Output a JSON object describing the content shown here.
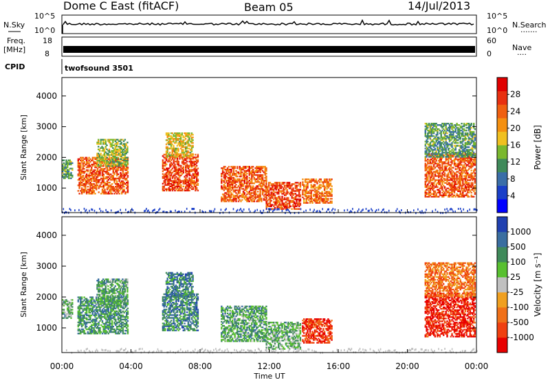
{
  "header": {
    "station": "Dome C East (fitACF)",
    "beam": "Beam 05",
    "date": "14/Jul/2013"
  },
  "panels": {
    "nsky": {
      "label": "N.Sky",
      "ticks": [
        "10^5",
        "10^0"
      ]
    },
    "nsearch": {
      "label": "N.Search",
      "dots": "·······",
      "ticks": [
        "10^5",
        "10^0"
      ]
    },
    "freq": {
      "label_line1": "Freq.",
      "label_line2": "[MHz]",
      "ticks": [
        "18",
        "8"
      ]
    },
    "nave": {
      "label": "Nave",
      "dots": "····",
      "ticks": [
        "60",
        "0"
      ]
    },
    "cpid": {
      "label": "CPID",
      "value": "twofsound 3501"
    }
  },
  "chart_data": [
    {
      "type": "heatmap",
      "name": "power",
      "ylabel": "Slant Range [km]",
      "y_ticks": [
        1000,
        2000,
        3000,
        4000
      ],
      "ylim": [
        200,
        4600
      ],
      "xlim": [
        0,
        24
      ],
      "colorbar": {
        "label": "Power [dB]",
        "ticks": [
          "4",
          "8",
          "12",
          "16",
          "20",
          "24",
          "28"
        ],
        "colors": [
          "#0000ff",
          "#1a3fc8",
          "#3a6ea8",
          "#3f8a5a",
          "#7ab82e",
          "#f0c020",
          "#f59010",
          "#f06010",
          "#e83010",
          "#e00000"
        ]
      },
      "blobs": [
        {
          "t0": 0.0,
          "t1": 0.6,
          "r0": 1300,
          "r1": 1900,
          "level": 0.35
        },
        {
          "t0": 0.9,
          "t1": 3.8,
          "r0": 800,
          "r1": 2000,
          "level": 0.8
        },
        {
          "t0": 2.0,
          "t1": 3.8,
          "r0": 1700,
          "r1": 2600,
          "level": 0.45
        },
        {
          "t0": 5.8,
          "t1": 7.9,
          "r0": 900,
          "r1": 2100,
          "level": 0.85
        },
        {
          "t0": 6.0,
          "t1": 7.6,
          "r0": 2000,
          "r1": 2800,
          "level": 0.55
        },
        {
          "t0": 9.2,
          "t1": 11.8,
          "r0": 550,
          "r1": 1700,
          "level": 0.8
        },
        {
          "t0": 11.8,
          "t1": 13.8,
          "r0": 300,
          "r1": 1200,
          "level": 0.85
        },
        {
          "t0": 13.9,
          "t1": 15.6,
          "r0": 500,
          "r1": 1300,
          "level": 0.75
        },
        {
          "t0": 21.0,
          "t1": 23.9,
          "r0": 700,
          "r1": 2100,
          "level": 0.8
        },
        {
          "t0": 21.0,
          "t1": 23.9,
          "r0": 2000,
          "r1": 3100,
          "level": 0.35
        }
      ]
    },
    {
      "type": "heatmap",
      "name": "velocity",
      "ylabel": "Slant Range [km]",
      "y_ticks": [
        1000,
        2000,
        3000,
        4000
      ],
      "ylim": [
        200,
        4600
      ],
      "xlim": [
        0,
        24
      ],
      "colorbar": {
        "label": "Velocity [m s⁻¹]",
        "ticks": [
          "1000",
          "500",
          "100",
          "25",
          "-25",
          "-100",
          "-500",
          "-1000"
        ],
        "colors": [
          "#2040b0",
          "#3a6ea0",
          "#3f8a5a",
          "#58c030",
          "#c0c0c0",
          "#f0a020",
          "#f07018",
          "#f04010",
          "#e80000"
        ]
      },
      "blobs": [
        {
          "t0": 0.0,
          "t1": 0.6,
          "r0": 1300,
          "r1": 1900,
          "level": 0.35
        },
        {
          "t0": 0.9,
          "t1": 3.8,
          "r0": 800,
          "r1": 2000,
          "level": 0.25
        },
        {
          "t0": 2.0,
          "t1": 3.8,
          "r0": 1700,
          "r1": 2600,
          "level": 0.3
        },
        {
          "t0": 5.8,
          "t1": 7.9,
          "r0": 900,
          "r1": 2100,
          "level": 0.2
        },
        {
          "t0": 6.0,
          "t1": 7.6,
          "r0": 2000,
          "r1": 2800,
          "level": 0.2
        },
        {
          "t0": 9.2,
          "t1": 11.8,
          "r0": 550,
          "r1": 1700,
          "level": 0.3
        },
        {
          "t0": 11.8,
          "t1": 13.8,
          "r0": 300,
          "r1": 1200,
          "level": 0.35
        },
        {
          "t0": 13.9,
          "t1": 15.6,
          "r0": 500,
          "r1": 1300,
          "level": 0.9
        },
        {
          "t0": 21.0,
          "t1": 23.9,
          "r0": 700,
          "r1": 2100,
          "level": 0.95
        },
        {
          "t0": 21.0,
          "t1": 23.9,
          "r0": 2000,
          "r1": 3100,
          "level": 0.75
        }
      ]
    }
  ],
  "x_axis": {
    "label": "Time UT",
    "ticks": [
      "00:00",
      "04:00",
      "08:00",
      "12:00",
      "16:00",
      "20:00",
      "00:00"
    ]
  }
}
